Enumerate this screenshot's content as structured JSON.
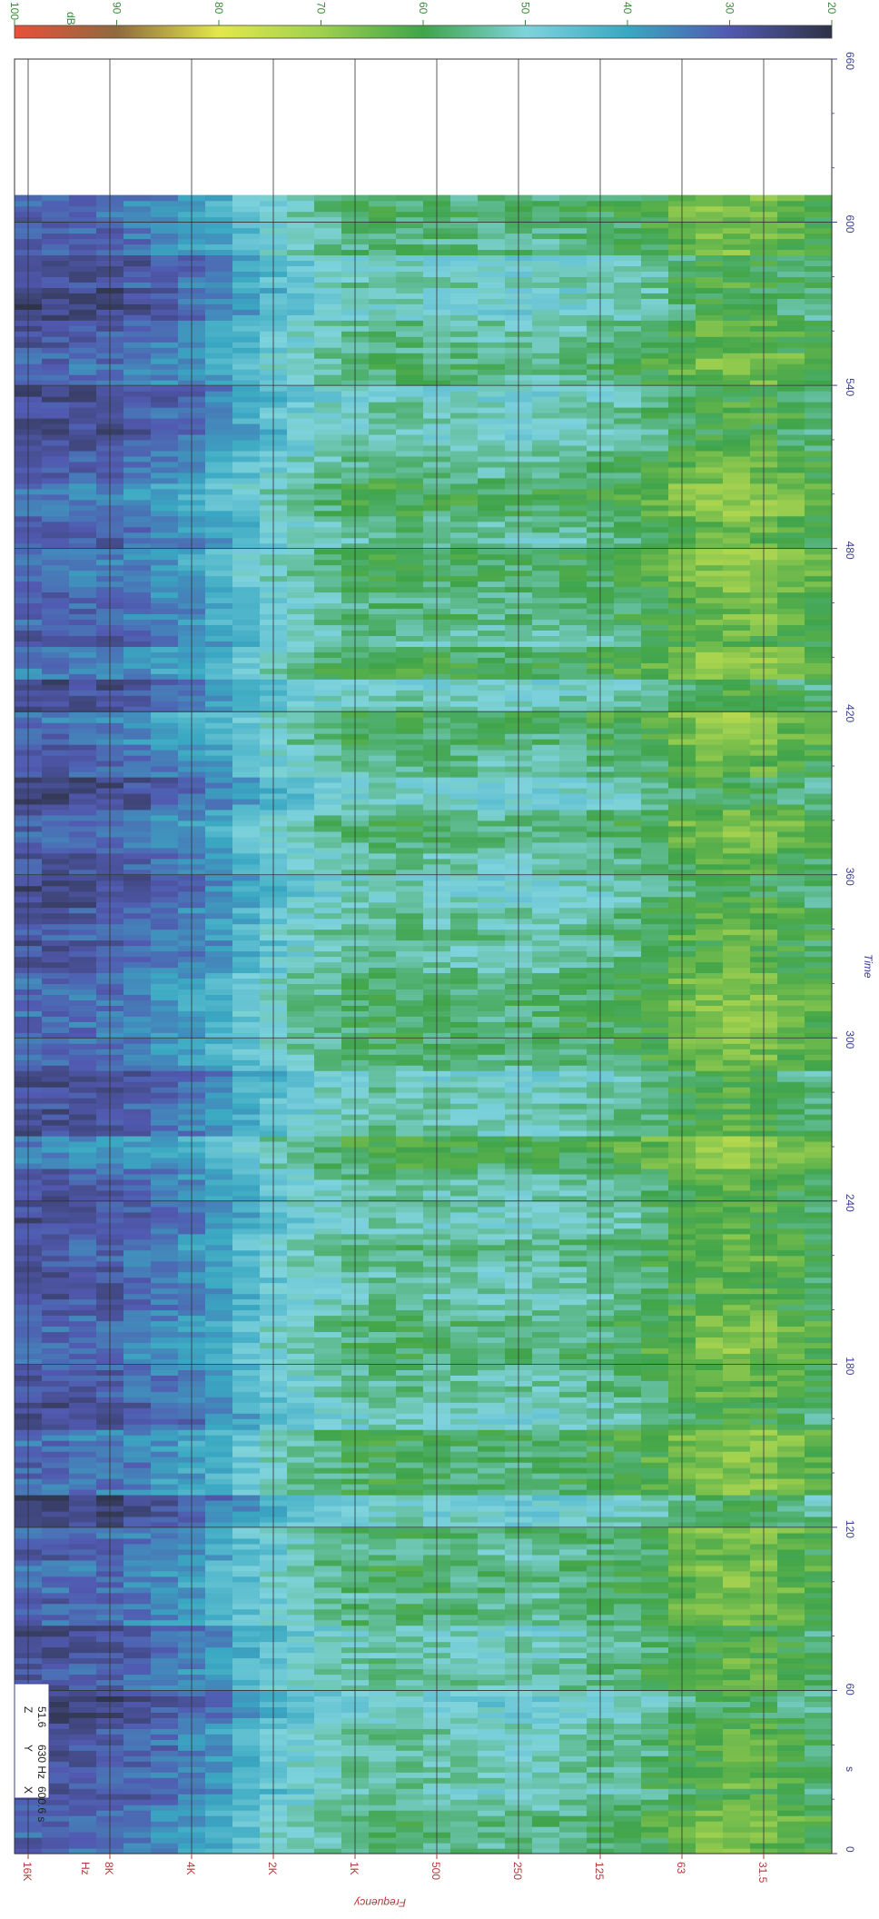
{
  "chart_data": {
    "type": "heatmap",
    "title": "",
    "colorbar": {
      "label": "dB",
      "range": [
        20,
        100
      ],
      "ticks": [
        "100",
        "90",
        "80",
        "70",
        "60",
        "50",
        "40",
        "30",
        "20"
      ],
      "stops": [
        {
          "value": 100,
          "color": "#e8513a"
        },
        {
          "value": 90,
          "color": "#8f6a3e"
        },
        {
          "value": 80,
          "color": "#e2e84c"
        },
        {
          "value": 70,
          "color": "#9fd04f"
        },
        {
          "value": 60,
          "color": "#3fa44a"
        },
        {
          "value": 50,
          "color": "#7fd3dc"
        },
        {
          "value": 40,
          "color": "#3aa8c2"
        },
        {
          "value": 30,
          "color": "#5159b0"
        },
        {
          "value": 20,
          "color": "#2e3346"
        }
      ]
    },
    "time_axis": {
      "label": "Time",
      "unit": "s",
      "range": [
        0,
        660
      ],
      "ticks": [
        "0",
        "60",
        "120",
        "180",
        "240",
        "300",
        "360",
        "420",
        "480",
        "540",
        "600",
        "660"
      ],
      "data_end": 610
    },
    "frequency_axis": {
      "label": "Frequency",
      "unit": "Hz",
      "ticks": [
        "16K",
        "8K",
        "4K",
        "2K",
        "1K",
        "500",
        "250",
        "125",
        "63",
        "31.5"
      ],
      "bands": [
        "16K",
        "12.5K",
        "10K",
        "8K",
        "6.3K",
        "5K",
        "4K",
        "3.15K",
        "2.5K",
        "2K",
        "1.6K",
        "1.25K",
        "1K",
        "800",
        "630",
        "500",
        "400",
        "315",
        "250",
        "200",
        "160",
        "125",
        "100",
        "80",
        "63",
        "50",
        "40",
        "31.5",
        "25",
        "20"
      ],
      "band_level_profile_db": [
        30,
        30,
        31,
        31,
        33,
        35,
        37,
        40,
        44,
        48,
        51,
        53,
        55,
        56,
        56,
        55,
        55,
        54,
        54,
        54,
        55,
        56,
        57,
        59,
        62,
        64,
        65,
        64,
        62,
        60
      ]
    },
    "grid": true,
    "cursor_readout": {
      "x_label": "X",
      "x_value": "600.6 s",
      "y_label": "Y",
      "y_value": "630 Hz",
      "z_label": "Z",
      "z_value": "51.6"
    },
    "legend": "top"
  }
}
